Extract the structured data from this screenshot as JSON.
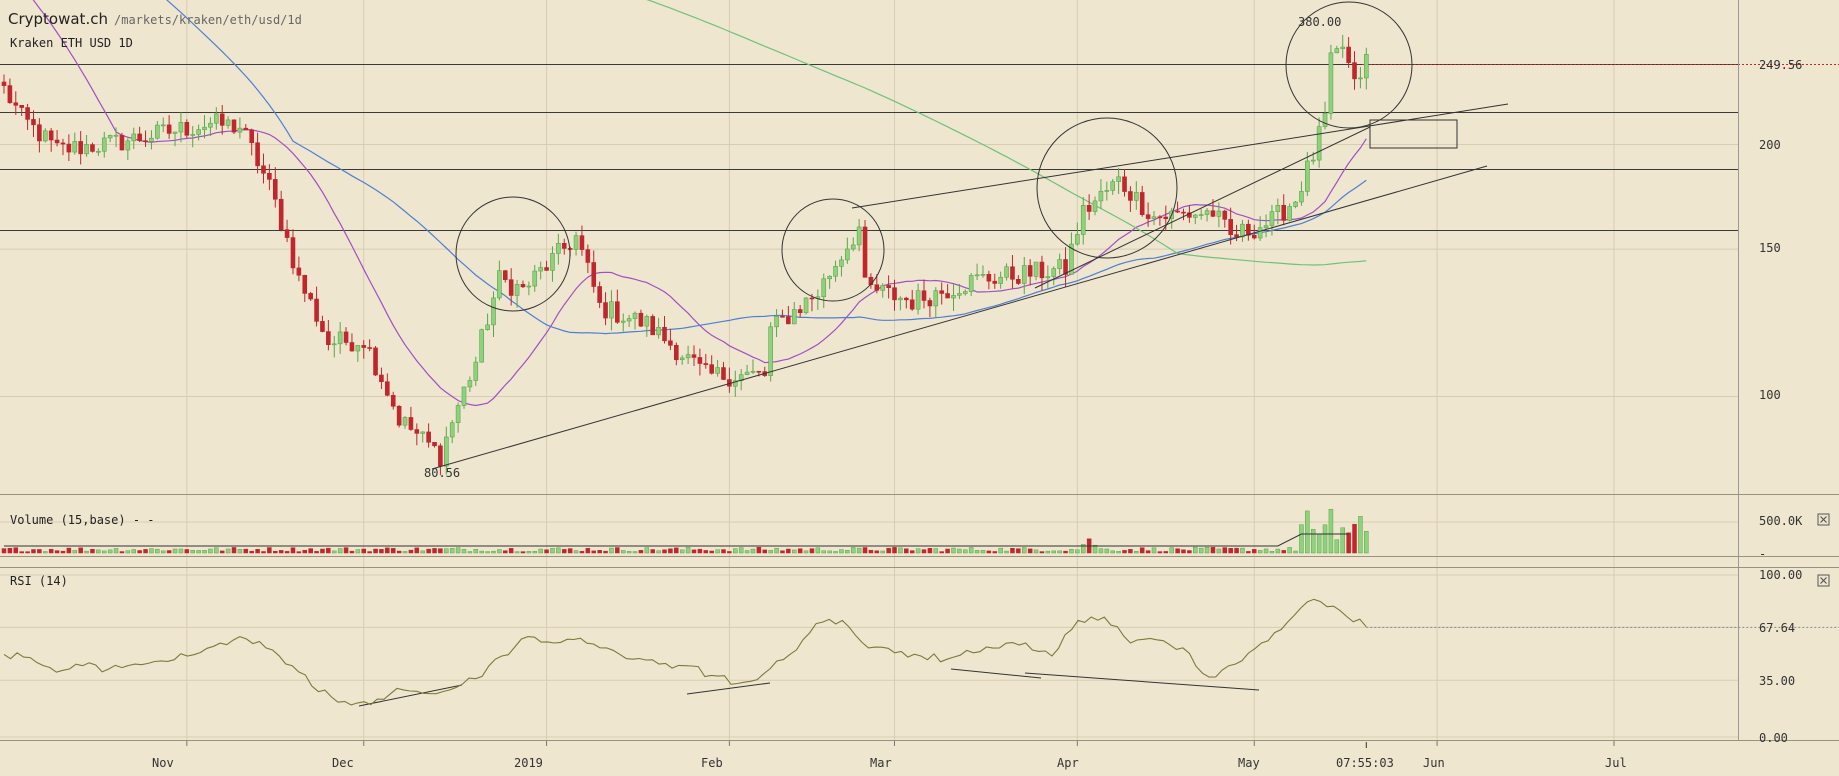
{
  "header": {
    "site": "Cryptowat.ch",
    "path": "/markets/kraken/eth/usd/1d",
    "market": "Kraken ETH USD 1D"
  },
  "price_panel": {
    "y_ticks": [
      "249.56",
      "200",
      "150",
      "100"
    ],
    "high_label": "380.00",
    "low_label": "80.56",
    "current_price": "249.56"
  },
  "volume_panel": {
    "label": "Volume (15,base) - -",
    "y_ticks": [
      "500.0K",
      "-"
    ]
  },
  "rsi_panel": {
    "label": "RSI (14)",
    "y_ticks": [
      "100.00",
      "67.64",
      "35.00",
      "0.00"
    ]
  },
  "time_axis": {
    "labels": [
      "Nov",
      "Dec",
      "2019",
      "Feb",
      "Mar",
      "Apr",
      "May",
      "Jun",
      "Jul"
    ],
    "cursor_time": "07:55:03"
  },
  "colors": {
    "background": "#efe6d0",
    "up_candle": "#5aa54a",
    "down_candle": "#c0262c",
    "ma_blue": "#4f7fd0",
    "ma_purple": "#a050c0",
    "ma_green": "#6fc27a",
    "rsi_line": "#7a7a3a",
    "grid": "#d8ccb2"
  },
  "chart_data": [
    {
      "type": "candlestick",
      "title": "Kraken ETH USD 1D",
      "x_range": [
        "2018-10-01",
        "2019-07-15"
      ],
      "y_scale": "log",
      "y_ticks": [
        100,
        150,
        200,
        249.56
      ],
      "x_tick_labels": [
        "Nov",
        "Dec",
        "2019",
        "Feb",
        "Mar",
        "Apr",
        "May",
        "Jun",
        "Jul"
      ],
      "close_path": [
        {
          "date": "2018-10-01",
          "close": 233
        },
        {
          "date": "2018-10-04",
          "close": 215
        },
        {
          "date": "2018-10-10",
          "close": 197
        },
        {
          "date": "2018-10-20",
          "close": 201
        },
        {
          "date": "2018-11-05",
          "close": 212
        },
        {
          "date": "2018-11-10",
          "close": 210
        },
        {
          "date": "2018-11-15",
          "close": 178
        },
        {
          "date": "2018-11-20",
          "close": 138
        },
        {
          "date": "2018-11-25",
          "close": 116
        },
        {
          "date": "2018-12-01",
          "close": 117
        },
        {
          "date": "2018-12-07",
          "close": 94
        },
        {
          "date": "2018-12-14",
          "close": 85
        },
        {
          "date": "2018-12-20",
          "close": 110
        },
        {
          "date": "2018-12-24",
          "close": 138
        },
        {
          "date": "2018-12-28",
          "close": 134
        },
        {
          "date": "2019-01-06",
          "close": 155
        },
        {
          "date": "2019-01-10",
          "close": 128
        },
        {
          "date": "2019-01-18",
          "close": 122
        },
        {
          "date": "2019-01-28",
          "close": 106
        },
        {
          "date": "2019-02-07",
          "close": 106
        },
        {
          "date": "2019-02-08",
          "close": 120
        },
        {
          "date": "2019-02-16",
          "close": 133
        },
        {
          "date": "2019-02-23",
          "close": 159
        },
        {
          "date": "2019-02-24",
          "close": 135
        },
        {
          "date": "2019-03-04",
          "close": 130
        },
        {
          "date": "2019-03-15",
          "close": 138
        },
        {
          "date": "2019-03-30",
          "close": 142
        },
        {
          "date": "2019-04-02",
          "close": 166
        },
        {
          "date": "2019-04-08",
          "close": 181
        },
        {
          "date": "2019-04-14",
          "close": 164
        },
        {
          "date": "2019-04-24",
          "close": 166
        },
        {
          "date": "2019-04-27",
          "close": 155
        },
        {
          "date": "2019-05-04",
          "close": 162
        },
        {
          "date": "2019-05-08",
          "close": 172
        },
        {
          "date": "2019-05-11",
          "close": 194
        },
        {
          "date": "2019-05-13",
          "close": 215
        },
        {
          "date": "2019-05-14",
          "close": 250
        },
        {
          "date": "2019-05-16",
          "close": 262
        },
        {
          "date": "2019-05-18",
          "close": 234
        },
        {
          "date": "2019-05-20",
          "close": 252
        }
      ],
      "overlays": {
        "moving_averages": [
          "blue",
          "purple",
          "green"
        ],
        "horizontal_levels": [
          249.56,
          219,
          187,
          158
        ],
        "circled_highs": 4
      }
    },
    {
      "type": "bar",
      "title": "Volume (15,base)",
      "y_ticks": [
        "500.0K"
      ],
      "note": "daily volume bars colored by candle direction; spikes in mid-May 2019"
    },
    {
      "type": "line",
      "title": "RSI (14)",
      "y_range": [
        0,
        100
      ],
      "y_ticks": [
        0,
        35,
        67.64,
        100
      ],
      "series": [
        {
          "values": [
            51,
            49,
            40,
            44,
            42,
            45,
            47,
            50,
            56,
            62,
            55,
            44,
            28,
            22,
            20,
            30,
            27,
            29,
            36,
            50,
            62,
            58,
            61,
            55,
            48,
            45,
            44,
            38,
            33,
            39,
            51,
            70,
            72,
            55,
            52,
            50,
            48,
            52,
            55,
            58,
            50,
            72,
            74,
            58,
            60,
            55,
            37,
            45,
            58,
            71,
            85,
            78,
            68
          ]
        }
      ]
    }
  ]
}
